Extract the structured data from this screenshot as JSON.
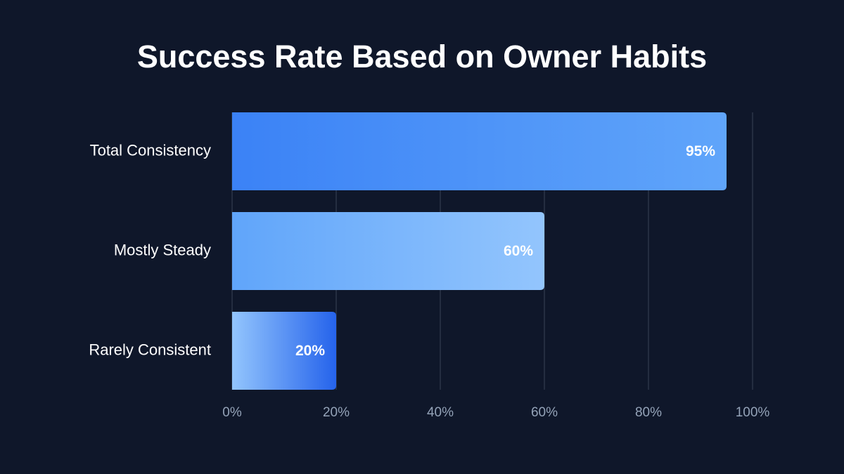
{
  "chart_data": {
    "type": "bar",
    "orientation": "horizontal",
    "title": "Success Rate Based on Owner Habits",
    "categories": [
      "Total Consistency",
      "Mostly Steady",
      "Rarely Consistent"
    ],
    "values": [
      95,
      60,
      20
    ],
    "value_labels": [
      "95%",
      "60%",
      "20%"
    ],
    "colors": [
      [
        "#3b82f6",
        "#60a5fa"
      ],
      [
        "#60a5fa",
        "#93c5fd"
      ],
      [
        "#93c5fd",
        "#2563eb"
      ]
    ],
    "xlim": [
      0,
      100
    ],
    "xticks": [
      {
        "value": 0,
        "label": "0%"
      },
      {
        "value": 20,
        "label": "20%"
      },
      {
        "value": 40,
        "label": "40%"
      },
      {
        "value": 60,
        "label": "60%"
      },
      {
        "value": 80,
        "label": "80%"
      },
      {
        "value": 100,
        "label": "100%"
      }
    ],
    "grid": true
  }
}
